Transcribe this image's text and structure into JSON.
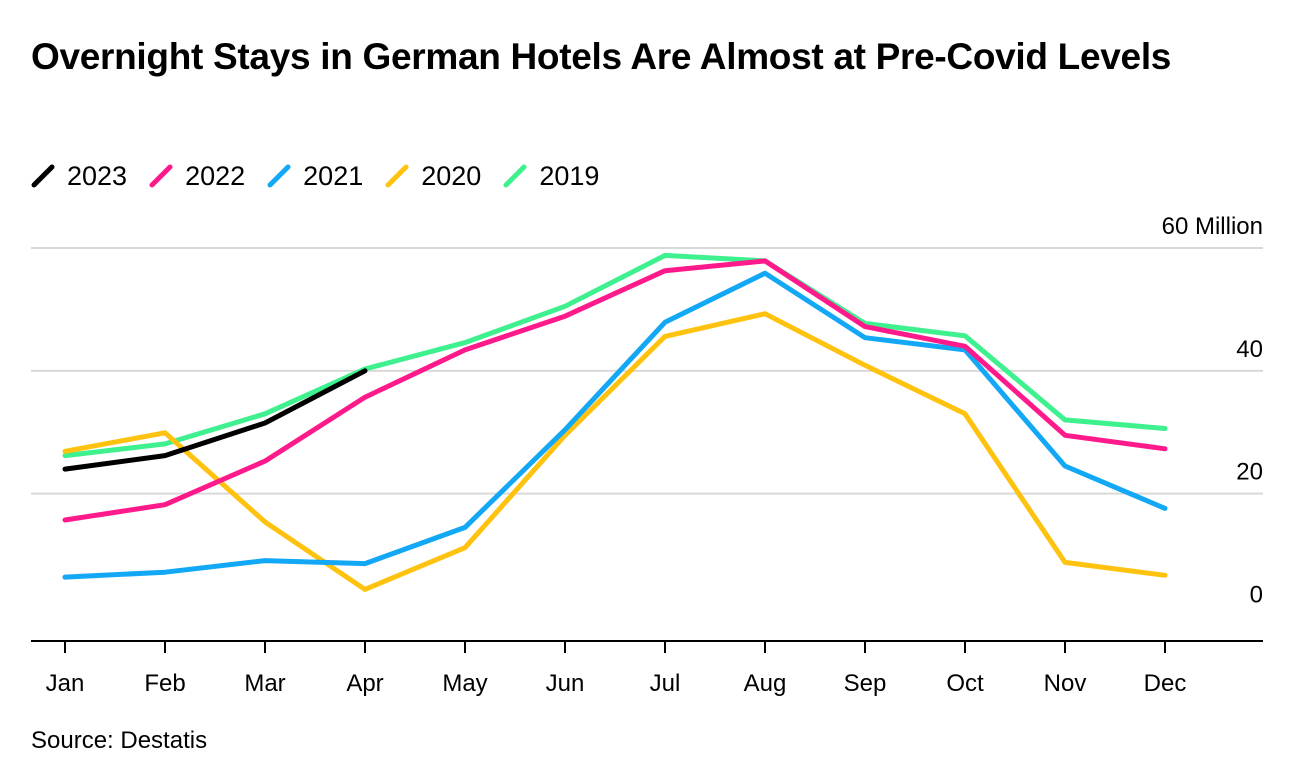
{
  "chart_data": {
    "type": "line",
    "title": "Overnight Stays in German Hotels Are Almost at Pre-Covid Levels",
    "categories": [
      "Jan",
      "Feb",
      "Mar",
      "Apr",
      "May",
      "Jun",
      "Jul",
      "Aug",
      "Sep",
      "Oct",
      "Nov",
      "Dec"
    ],
    "y_unit_label": "60 Million",
    "y_ticks": [
      "0",
      "20",
      "40",
      "60 Million"
    ],
    "y_tick_values": [
      0,
      20,
      40,
      60
    ],
    "ylim": [
      -4,
      60
    ],
    "grid": true,
    "legend_position": "top-left",
    "series": [
      {
        "name": "2023",
        "color": "#000000",
        "values": [
          24.0,
          26.2,
          31.5,
          40.0,
          null,
          null,
          null,
          null,
          null,
          null,
          null,
          null
        ]
      },
      {
        "name": "2022",
        "color": "#ff1a8c",
        "values": [
          15.7,
          18.2,
          25.3,
          35.7,
          43.4,
          48.9,
          56.3,
          57.9,
          47.2,
          44.0,
          29.5,
          27.3
        ]
      },
      {
        "name": "2021",
        "color": "#12a8f5",
        "values": [
          6.4,
          7.2,
          9.1,
          8.6,
          14.5,
          30.4,
          47.9,
          55.9,
          45.4,
          43.4,
          24.5,
          17.6
        ]
      },
      {
        "name": "2020",
        "color": "#ffc20e",
        "values": [
          26.9,
          29.9,
          15.4,
          4.4,
          11.2,
          29.5,
          45.6,
          49.3,
          40.9,
          33.0,
          8.8,
          6.7
        ]
      },
      {
        "name": "2019",
        "color": "#3ef08e",
        "values": [
          26.2,
          28.1,
          33.0,
          40.3,
          44.6,
          50.5,
          58.8,
          57.9,
          47.7,
          45.7,
          32.0,
          30.6
        ]
      }
    ]
  },
  "source": "Source: Destatis"
}
